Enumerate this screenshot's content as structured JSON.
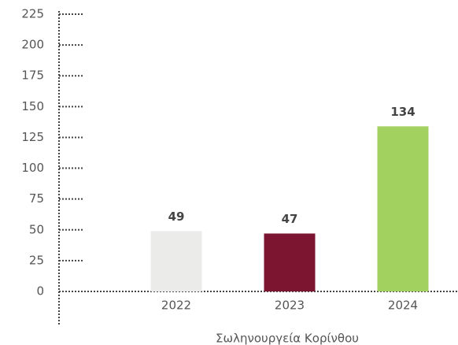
{
  "chart_data": {
    "type": "bar",
    "categories": [
      "2022",
      "2023",
      "2024"
    ],
    "values": [
      49,
      47,
      134
    ],
    "colors": [
      "#ebebe9",
      "#7b1530",
      "#a3d160"
    ],
    "x_label": "Σωληνουργεία Κορίνθου",
    "ylim": [
      0,
      225
    ],
    "yticks": [
      0,
      25,
      50,
      75,
      100,
      125,
      150,
      175,
      200,
      225
    ],
    "grid": true
  }
}
